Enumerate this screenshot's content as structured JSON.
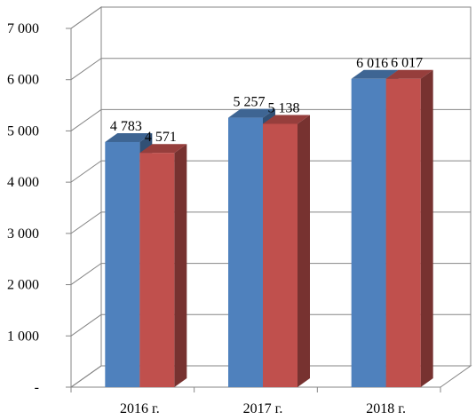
{
  "chart_data": {
    "type": "bar",
    "categories": [
      "2016 г.",
      "2017 г.",
      "2018 г."
    ],
    "series": [
      {
        "values": [
          4783,
          5257,
          6016
        ],
        "labels": [
          "4 783",
          "5 257",
          "6 016"
        ],
        "color": "#4f81bd"
      },
      {
        "values": [
          4571,
          5138,
          6017
        ],
        "labels": [
          "4 571",
          "5 138",
          "6 017"
        ],
        "color": "#c0504d"
      }
    ],
    "ylim": [
      0,
      7000
    ],
    "yticks": [
      0,
      1000,
      2000,
      3000,
      4000,
      5000,
      6000,
      7000
    ],
    "ytick_labels": [
      "-",
      "1 000",
      "2 000",
      "3 000",
      "4 000",
      "5 000",
      "6 000",
      "7 000"
    ],
    "grid": true,
    "style": "3d-clustered-column",
    "legend": "none"
  }
}
